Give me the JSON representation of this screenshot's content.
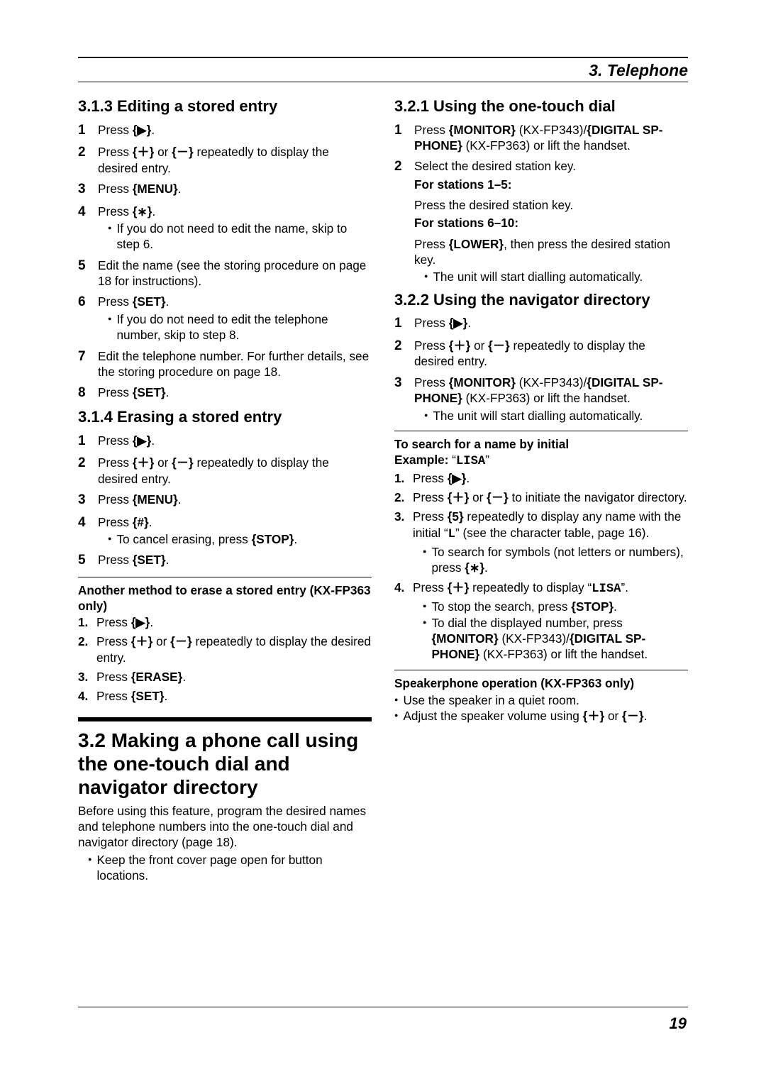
{
  "chapter": "3. Telephone",
  "left": {
    "s313": {
      "title": "3.1.3 Editing a stored entry",
      "items": [
        {
          "n": "1",
          "c": "Press {▶}."
        },
        {
          "n": "2",
          "c": "Press {+} or {−} repeatedly to display the desired entry."
        },
        {
          "n": "3",
          "c": "Press {MENU}."
        },
        {
          "n": "4",
          "c": "Press {*}.",
          "b": [
            "If you do not need to edit the name, skip to step 6."
          ]
        },
        {
          "n": "5",
          "c": "Edit the name (see the storing procedure on page 18 for instructions)."
        },
        {
          "n": "6",
          "c": "Press {SET}.",
          "b": [
            "If you do not need to edit the telephone number, skip to step 8."
          ]
        },
        {
          "n": "7",
          "c": "Edit the telephone number. For further details, see the storing procedure on page 18."
        },
        {
          "n": "8",
          "c": "Press {SET}."
        }
      ]
    },
    "s314": {
      "title": "3.1.4 Erasing a stored entry",
      "items": [
        {
          "n": "1",
          "c": "Press {▶}."
        },
        {
          "n": "2",
          "c": "Press {+} or {−} repeatedly to display the desired entry."
        },
        {
          "n": "3",
          "c": "Press {MENU}."
        },
        {
          "n": "4",
          "c": "Press {#}.",
          "b": [
            "To cancel erasing, press {STOP}."
          ]
        },
        {
          "n": "5",
          "c": "Press {SET}."
        }
      ],
      "anotherTitle": "Another method to erase a stored entry (KX-FP363 only)",
      "another": [
        {
          "n": "1.",
          "c": "Press {▶}."
        },
        {
          "n": "2.",
          "c": "Press {+} or {−} repeatedly to display the desired entry."
        },
        {
          "n": "3.",
          "c": "Press {ERASE}."
        },
        {
          "n": "4.",
          "c": "Press {SET}."
        }
      ]
    },
    "s32": {
      "title": "3.2 Making a phone call using the one-touch dial and navigator directory",
      "intro": "Before using this feature, program the desired names and telephone numbers into the one-touch dial and navigator directory (page 18).",
      "b": [
        "Keep the front cover page open for button locations."
      ]
    }
  },
  "right": {
    "s321": {
      "title": "3.2.1 Using the one-touch dial",
      "items": [
        {
          "n": "1",
          "c": "Press {MONITOR} (KX-FP343)/{DIGITAL SP-PHONE} (KX-FP363) or lift the handset."
        },
        {
          "n": "2",
          "c": "Select the desired station key.",
          "sub": [
            {
              "t": "For stations 1–5:",
              "c": "Press the desired station key."
            },
            {
              "t": "For stations 6–10:",
              "c": "Press {LOWER}, then press the desired station key.",
              "b": [
                "The unit will start dialling automatically."
              ]
            }
          ]
        }
      ]
    },
    "s322": {
      "title": "3.2.2 Using the navigator directory",
      "items": [
        {
          "n": "1",
          "c": "Press {▶}."
        },
        {
          "n": "2",
          "c": "Press {+} or {−} repeatedly to display the desired entry."
        },
        {
          "n": "3",
          "c": "Press {MONITOR} (KX-FP343)/{DIGITAL SP-PHONE} (KX-FP363) or lift the handset.",
          "b": [
            "The unit will start dialling automatically."
          ]
        }
      ],
      "searchTitle": "To search for a name by initial",
      "example": "Example: \"LISA\"",
      "search": [
        {
          "n": "1.",
          "c": "Press {▶}."
        },
        {
          "n": "2.",
          "c": "Press {+} or {−} to initiate the navigator directory."
        },
        {
          "n": "3.",
          "c": "Press {5} repeatedly to display any name with the initial \"L\" (see the character table, page 16).",
          "b": [
            "To search for symbols (not letters or numbers), press {*}."
          ]
        },
        {
          "n": "4.",
          "c": "Press {+} repeatedly to display \"LISA\".",
          "b": [
            "To stop the search, press {STOP}.",
            "To dial the displayed number, press {MONITOR} (KX-FP343)/{DIGITAL SP-PHONE} (KX-FP363) or lift the handset."
          ]
        }
      ],
      "spkTitle": "Speakerphone operation (KX-FP363 only)",
      "spk": [
        "Use the speaker in a quiet room.",
        "Adjust the speaker volume using {+} or {−}."
      ]
    }
  },
  "pageNum": "19"
}
